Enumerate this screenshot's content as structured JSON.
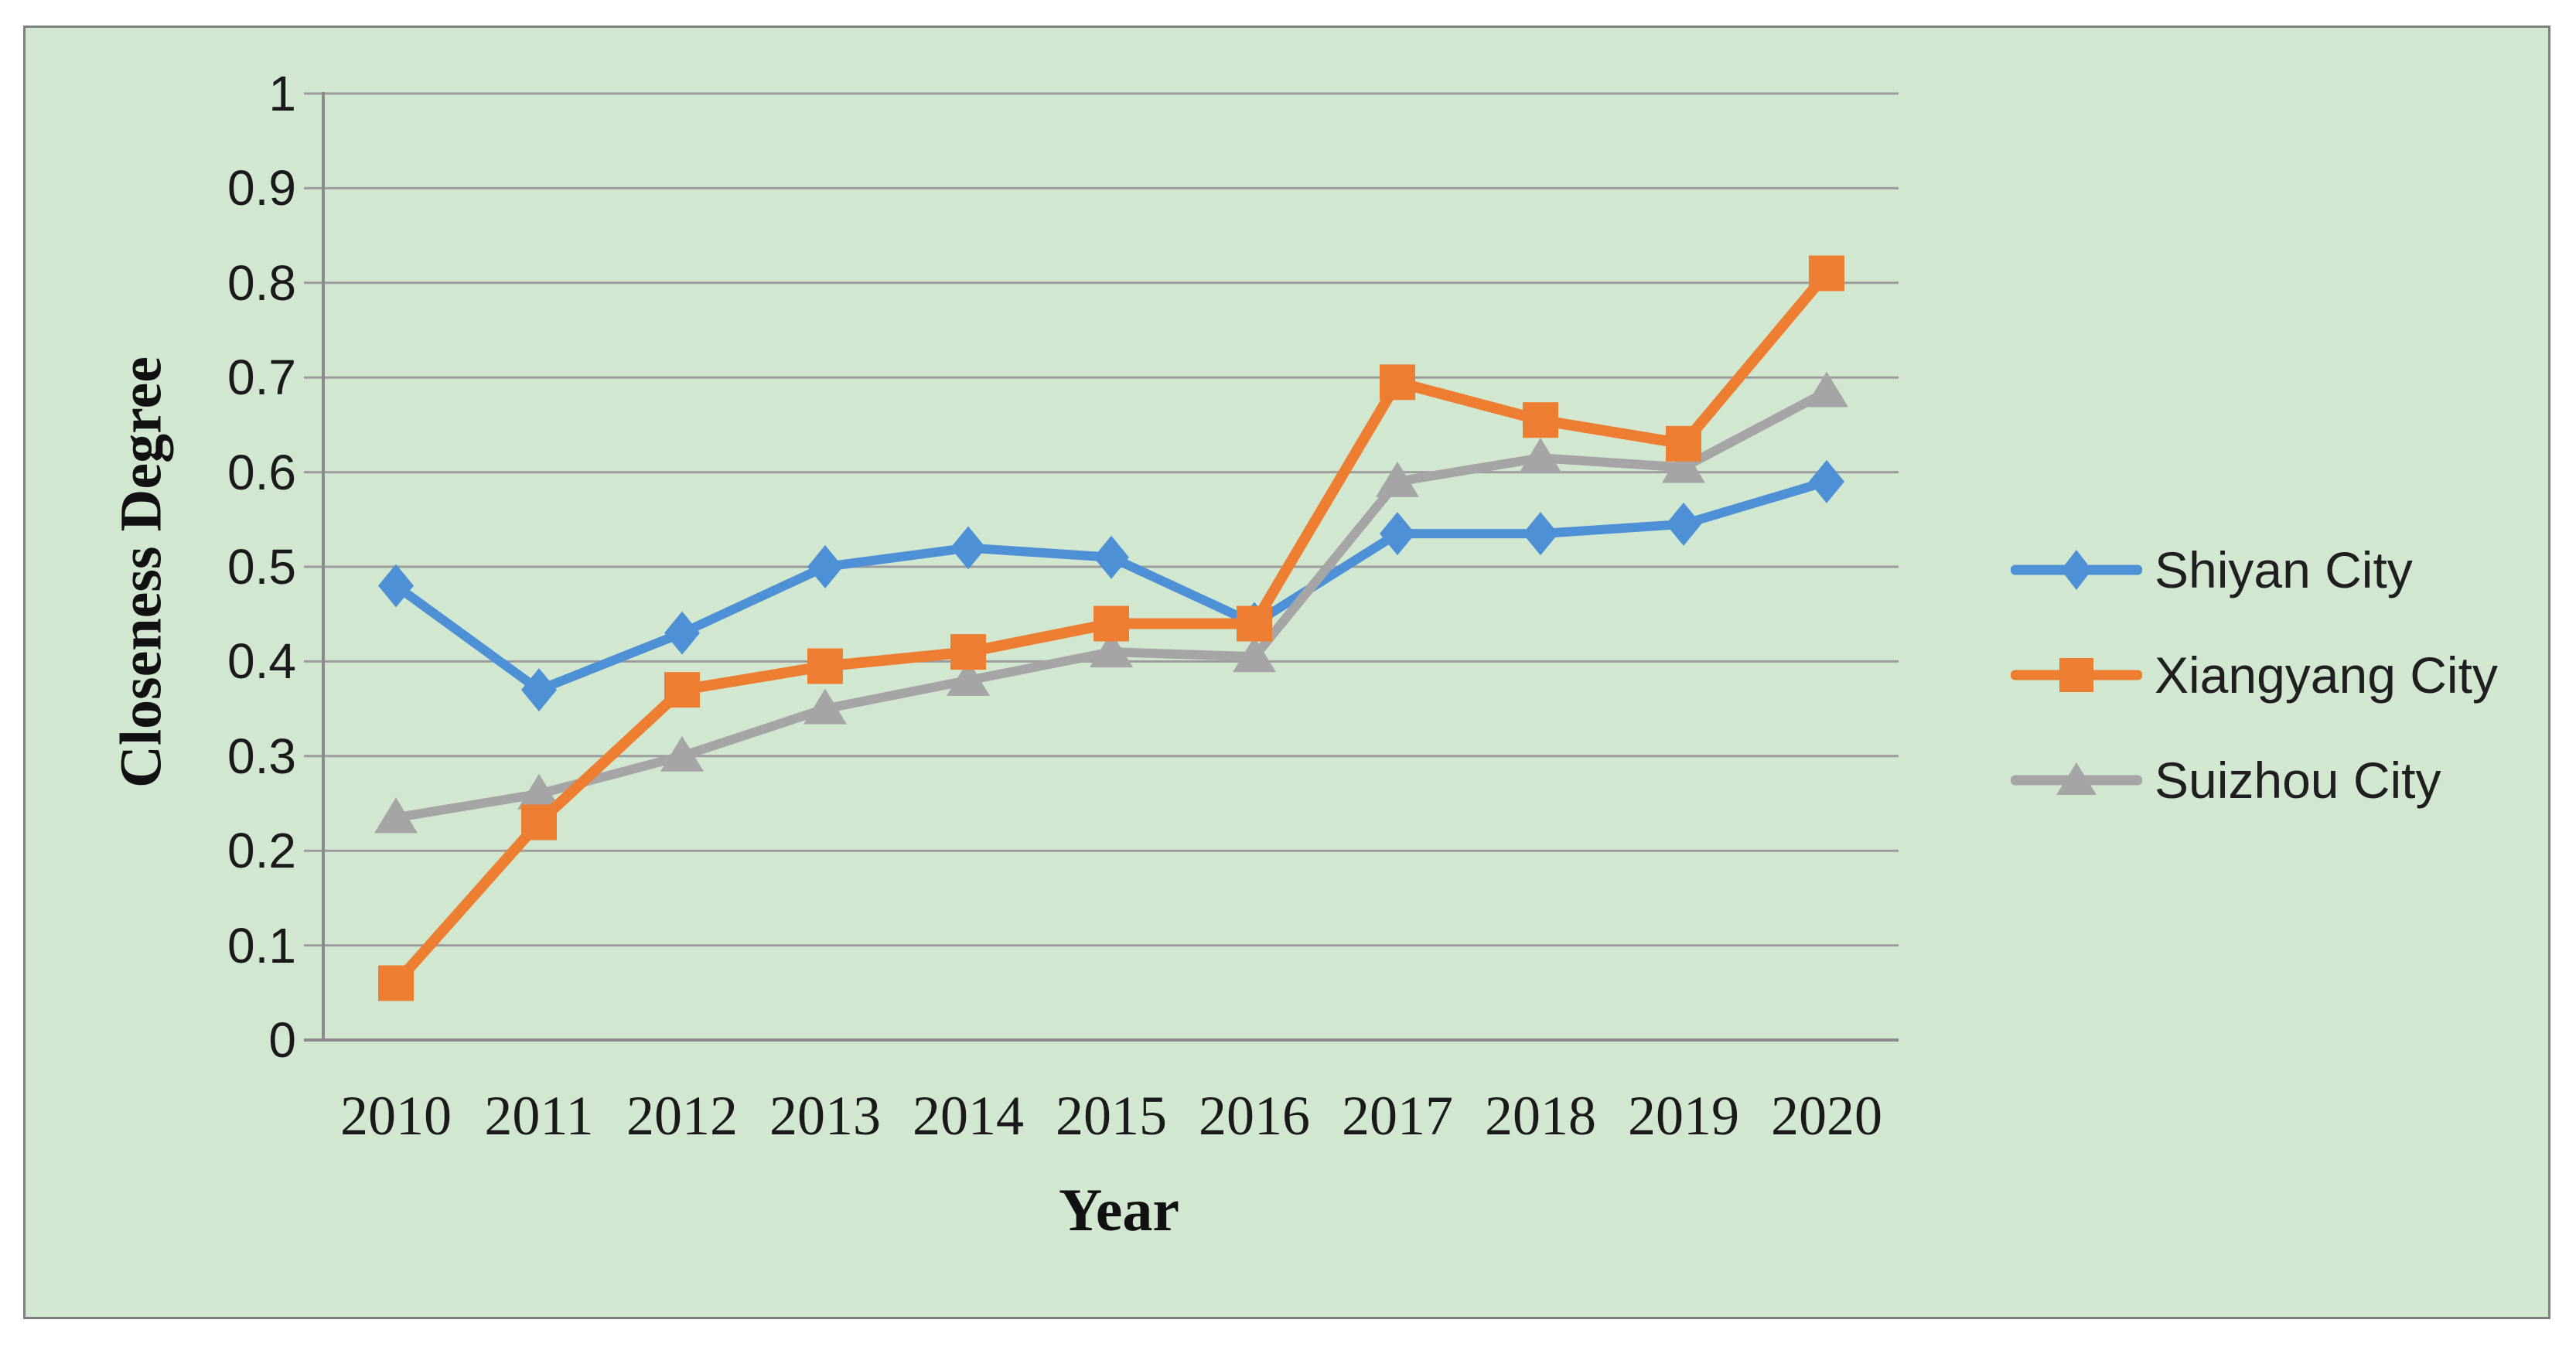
{
  "figure": {
    "background": "#ffffff",
    "panel_background": "#d1e7cf",
    "panel_border_color": "#7f7f7f"
  },
  "chart_data": {
    "type": "line",
    "title": "",
    "xlabel": "Year",
    "ylabel": "Closeness Degree",
    "categories": [
      "2010",
      "2011",
      "2012",
      "2013",
      "2014",
      "2015",
      "2016",
      "2017",
      "2018",
      "2019",
      "2020"
    ],
    "y_axis": {
      "min": 0,
      "max": 1,
      "step": 0.1,
      "tick_labels": [
        "0",
        "0.1",
        "0.2",
        "0.3",
        "0.4",
        "0.5",
        "0.6",
        "0.7",
        "0.8",
        "0.9",
        "1"
      ]
    },
    "grid": "horizontal",
    "gridline_color": "#9c9c9c",
    "axis_color": "#8a8a8a",
    "text_color": "#1a1a1a",
    "legend_position": "right",
    "series": [
      {
        "name": "Shiyan City",
        "color": "#4e90d5",
        "marker": "diamond",
        "values": [
          0.48,
          0.37,
          0.43,
          0.5,
          0.52,
          0.51,
          0.44,
          0.535,
          0.535,
          0.545,
          0.59
        ]
      },
      {
        "name": "Xiangyang City",
        "color": "#ed7d31",
        "marker": "square",
        "values": [
          0.06,
          0.23,
          0.37,
          0.395,
          0.41,
          0.44,
          0.44,
          0.695,
          0.655,
          0.63,
          0.81
        ]
      },
      {
        "name": "Suizhou City",
        "color": "#a5a5a5",
        "marker": "triangle",
        "values": [
          0.235,
          0.26,
          0.3,
          0.35,
          0.38,
          0.41,
          0.405,
          0.59,
          0.615,
          0.605,
          0.685
        ]
      }
    ]
  }
}
